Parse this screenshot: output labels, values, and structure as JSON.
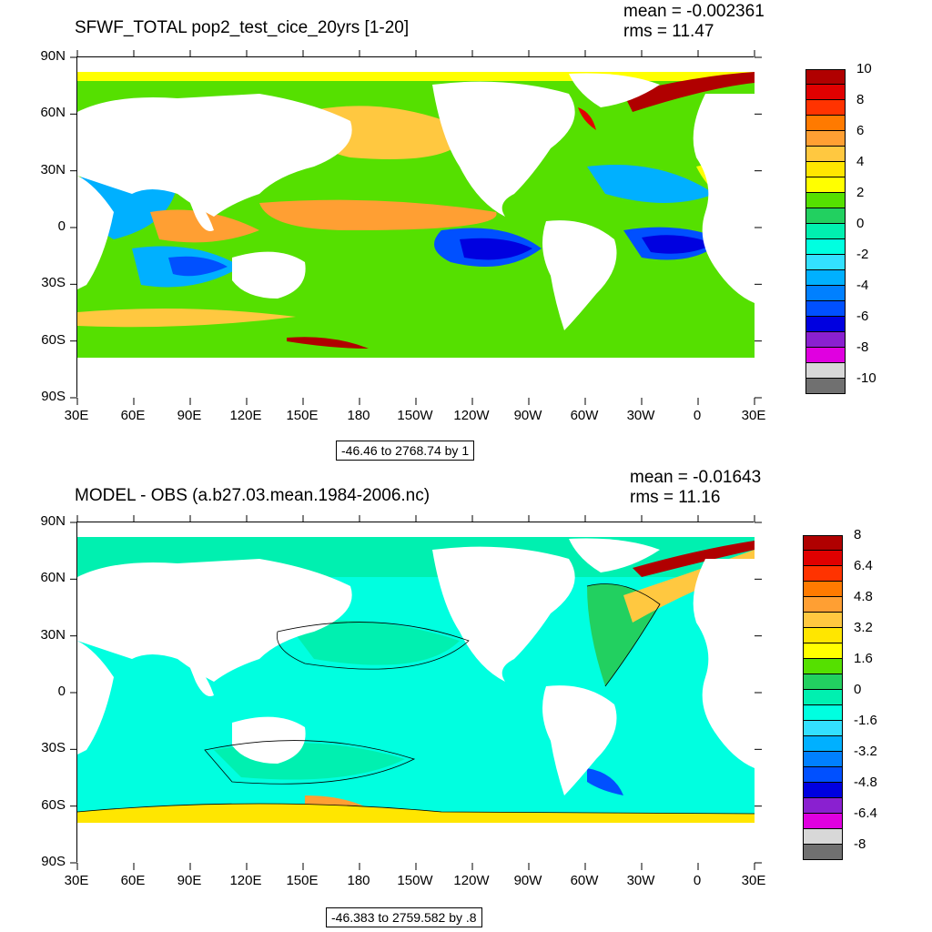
{
  "panels": [
    {
      "title": "SFWF_TOTAL pop2_test_cice_20yrs [1-20]",
      "mean": "mean = -0.002361",
      "rms": "rms = 11.47",
      "range_label": "-46.46 to 2768.74 by 1",
      "colorbar_labels": [
        "10",
        "8",
        "6",
        "4",
        "2",
        "0",
        "-2",
        "-4",
        "-6",
        "-8",
        "-10"
      ],
      "colorbar_colors": [
        "#b00000",
        "#e00000",
        "#ff3300",
        "#ff7a00",
        "#ff9f33",
        "#ffc840",
        "#ffe600",
        "#ffff00",
        "#55e000",
        "#22d060",
        "#00f0b0",
        "#00ffe0",
        "#33e0ff",
        "#00b0ff",
        "#0080ff",
        "#0050ff",
        "#0000e0",
        "#8a20d0",
        "#e000e0",
        "#d8d8d8",
        "#707070"
      ],
      "contour_lines": false
    },
    {
      "title": "MODEL - OBS (a.b27.03.mean.1984-2006.nc)",
      "mean": "mean = -0.01643",
      "rms": "rms = 11.16",
      "range_label": "-46.383 to 2759.582 by .8",
      "colorbar_labels": [
        "8",
        "6.4",
        "4.8",
        "3.2",
        "1.6",
        "0",
        "-1.6",
        "-3.2",
        "-4.8",
        "-6.4",
        "-8"
      ],
      "colorbar_colors": [
        "#b00000",
        "#e00000",
        "#ff3300",
        "#ff7a00",
        "#ff9f33",
        "#ffc840",
        "#ffe600",
        "#ffff00",
        "#55e000",
        "#22d060",
        "#00f0b0",
        "#00ffe0",
        "#33e0ff",
        "#00b0ff",
        "#0080ff",
        "#0050ff",
        "#0000e0",
        "#8a20d0",
        "#e000e0",
        "#d8d8d8",
        "#707070"
      ],
      "contour_lines": true
    }
  ],
  "axes": {
    "lat_labels": [
      "90N",
      "60N",
      "30N",
      "0",
      "30S",
      "60S",
      "90S"
    ],
    "lon_labels": [
      "30E",
      "60E",
      "90E",
      "120E",
      "150E",
      "180",
      "150W",
      "120W",
      "90W",
      "60W",
      "30W",
      "0",
      "30E"
    ]
  }
}
